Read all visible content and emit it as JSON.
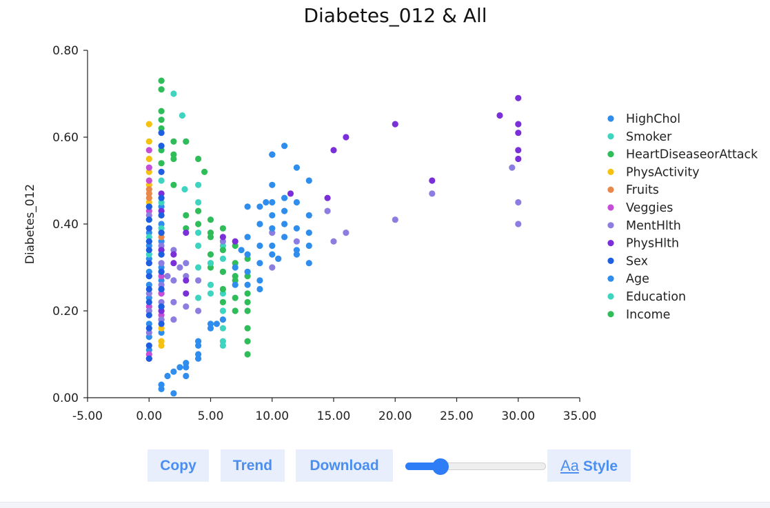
{
  "colors": {
    "HighChol": "#2e8ded",
    "Smoker": "#3dd4c0",
    "HeartDiseaseorAttack": "#2ebd59",
    "PhysActivity": "#f5c211",
    "Fruits": "#e8884a",
    "Veggies": "#c44fd6",
    "MentHlth": "#8c7ee0",
    "PhysHlth": "#7a2fd9",
    "Sex": "#1e5ee0",
    "Age": "#2e8ded",
    "Education": "#3dd4c0",
    "Income": "#2ebd59",
    "button_bg": "#e8eefb",
    "button_text": "#4a8ef0",
    "slider": "#2e7cf6"
  },
  "toolbar": {
    "copy_label": "Copy",
    "trend_label": "Trend",
    "download_label": "Download",
    "style_icon": "Aa",
    "style_label": "Style",
    "slider_value": 0.25
  },
  "chart_data": {
    "type": "scatter",
    "title": "Diabetes_012 & All",
    "xlabel": "",
    "ylabel": "Diabetes_012",
    "xlim": [
      -5,
      35
    ],
    "ylim": [
      0,
      0.8
    ],
    "x_ticks": [
      "-5.00",
      "0.00",
      "5.00",
      "10.00",
      "15.00",
      "20.00",
      "25.00",
      "30.00",
      "35.00"
    ],
    "y_ticks": [
      "0.00",
      "0.20",
      "0.40",
      "0.60",
      "0.80"
    ],
    "legend_position": "right",
    "grid": false,
    "series": [
      {
        "name": "HighChol",
        "points": [
          [
            0,
            0.11
          ],
          [
            0,
            0.14
          ],
          [
            0,
            0.17
          ],
          [
            0,
            0.2
          ],
          [
            0,
            0.23
          ],
          [
            0,
            0.26
          ],
          [
            0,
            0.29
          ],
          [
            0,
            0.32
          ],
          [
            0,
            0.35
          ],
          [
            0,
            0.38
          ],
          [
            1,
            0.15
          ],
          [
            1,
            0.18
          ],
          [
            1,
            0.21
          ],
          [
            1,
            0.24
          ],
          [
            1,
            0.27
          ],
          [
            1,
            0.3
          ],
          [
            1,
            0.33
          ],
          [
            1,
            0.36
          ],
          [
            1,
            0.4
          ],
          [
            1,
            0.44
          ]
        ]
      },
      {
        "name": "Smoker",
        "points": [
          [
            0,
            0.33
          ],
          [
            0,
            0.37
          ],
          [
            0,
            0.41
          ],
          [
            1,
            0.34
          ],
          [
            1,
            0.39
          ],
          [
            1,
            0.45
          ],
          [
            1,
            0.5
          ],
          [
            2,
            0.7
          ],
          [
            2.7,
            0.65
          ],
          [
            2.9,
            0.48
          ],
          [
            3,
            0.59
          ],
          [
            4,
            0.49
          ],
          [
            4,
            0.45
          ],
          [
            4,
            0.38
          ],
          [
            4,
            0.3
          ],
          [
            4,
            0.23
          ],
          [
            5,
            0.31
          ],
          [
            5,
            0.26
          ],
          [
            5,
            0.24
          ],
          [
            6,
            0.35
          ],
          [
            6,
            0.29
          ],
          [
            6,
            0.24
          ],
          [
            6,
            0.2
          ],
          [
            6,
            0.16
          ],
          [
            6,
            0.13
          ],
          [
            6,
            0.12
          ]
        ]
      },
      {
        "name": "HeartDiseaseorAttack",
        "points": [
          [
            1,
            0.73
          ],
          [
            1,
            0.71
          ],
          [
            1,
            0.66
          ],
          [
            1,
            0.64
          ],
          [
            1,
            0.62
          ],
          [
            1,
            0.57
          ],
          [
            1,
            0.54
          ],
          [
            2,
            0.59
          ],
          [
            2,
            0.56
          ],
          [
            2,
            0.55
          ],
          [
            2,
            0.49
          ],
          [
            3,
            0.59
          ],
          [
            4,
            0.55
          ],
          [
            4.5,
            0.52
          ],
          [
            3,
            0.42
          ],
          [
            3,
            0.39
          ],
          [
            4,
            0.43
          ],
          [
            4,
            0.4
          ],
          [
            5,
            0.41
          ],
          [
            5,
            0.38
          ],
          [
            5,
            0.33
          ],
          [
            5,
            0.3
          ],
          [
            6,
            0.39
          ],
          [
            6,
            0.34
          ],
          [
            6,
            0.29
          ],
          [
            6,
            0.25
          ],
          [
            6,
            0.22
          ],
          [
            7,
            0.35
          ],
          [
            7,
            0.31
          ],
          [
            7,
            0.27
          ],
          [
            7,
            0.23
          ],
          [
            7,
            0.2
          ],
          [
            8,
            0.32
          ],
          [
            8,
            0.28
          ],
          [
            8,
            0.24
          ],
          [
            8,
            0.2
          ],
          [
            8,
            0.16
          ],
          [
            8,
            0.13
          ],
          [
            8,
            0.1
          ]
        ]
      },
      {
        "name": "PhysActivity",
        "points": [
          [
            0,
            0.63
          ],
          [
            0,
            0.59
          ],
          [
            0,
            0.55
          ],
          [
            0,
            0.52
          ],
          [
            0,
            0.49
          ],
          [
            0,
            0.45
          ],
          [
            1,
            0.42
          ],
          [
            1,
            0.38
          ],
          [
            1,
            0.2
          ],
          [
            1,
            0.16
          ],
          [
            1,
            0.13
          ],
          [
            1,
            0.12
          ]
        ]
      },
      {
        "name": "Fruits",
        "points": [
          [
            0,
            0.48
          ],
          [
            0,
            0.47
          ],
          [
            0,
            0.46
          ],
          [
            1,
            0.37
          ]
        ]
      },
      {
        "name": "Veggies",
        "points": [
          [
            0,
            0.57
          ],
          [
            0,
            0.53
          ],
          [
            0,
            0.5
          ],
          [
            0,
            0.43
          ],
          [
            0,
            0.31
          ],
          [
            0,
            0.21
          ],
          [
            0,
            0.1
          ],
          [
            1,
            0.28
          ],
          [
            1,
            0.24
          ],
          [
            1,
            0.19
          ]
        ]
      },
      {
        "name": "MentHlth",
        "points": [
          [
            0,
            0.42
          ],
          [
            0,
            0.36
          ],
          [
            0,
            0.28
          ],
          [
            0,
            0.24
          ],
          [
            0,
            0.2
          ],
          [
            0,
            0.15
          ],
          [
            1,
            0.35
          ],
          [
            1,
            0.31
          ],
          [
            1,
            0.26
          ],
          [
            1,
            0.22
          ],
          [
            1,
            0.18
          ],
          [
            1.5,
            0.28
          ],
          [
            2,
            0.34
          ],
          [
            2,
            0.27
          ],
          [
            2,
            0.22
          ],
          [
            2,
            0.18
          ],
          [
            2.5,
            0.3
          ],
          [
            3,
            0.31
          ],
          [
            3,
            0.28
          ],
          [
            3,
            0.21
          ],
          [
            4,
            0.27
          ],
          [
            4,
            0.2
          ],
          [
            6,
            0.36
          ],
          [
            10,
            0.38
          ],
          [
            10,
            0.3
          ],
          [
            10.5,
            0.32
          ],
          [
            12,
            0.36
          ],
          [
            14.5,
            0.43
          ],
          [
            15,
            0.36
          ],
          [
            16,
            0.38
          ],
          [
            20,
            0.41
          ],
          [
            23,
            0.47
          ],
          [
            29.5,
            0.53
          ],
          [
            30,
            0.45
          ],
          [
            30,
            0.4
          ]
        ]
      },
      {
        "name": "PhysHlth",
        "points": [
          [
            0,
            0.44
          ],
          [
            0,
            0.39
          ],
          [
            0,
            0.09
          ],
          [
            1,
            0.47
          ],
          [
            1,
            0.43
          ],
          [
            1,
            0.34
          ],
          [
            1,
            0.29
          ],
          [
            1,
            0.25
          ],
          [
            1,
            0.2
          ],
          [
            2,
            0.33
          ],
          [
            2,
            0.31
          ],
          [
            3,
            0.38
          ],
          [
            3,
            0.27
          ],
          [
            3,
            0.24
          ],
          [
            6,
            0.37
          ],
          [
            7,
            0.36
          ],
          [
            10,
            0.56
          ],
          [
            11.5,
            0.47
          ],
          [
            14.5,
            0.46
          ],
          [
            15,
            0.57
          ],
          [
            16,
            0.6
          ],
          [
            20,
            0.63
          ],
          [
            23,
            0.5
          ],
          [
            28.5,
            0.65
          ],
          [
            30,
            0.69
          ],
          [
            30,
            0.63
          ],
          [
            30,
            0.61
          ],
          [
            30,
            0.57
          ],
          [
            30,
            0.55
          ]
        ]
      },
      {
        "name": "Sex",
        "points": [
          [
            0,
            0.09
          ],
          [
            0,
            0.12
          ],
          [
            0,
            0.16
          ],
          [
            0,
            0.19
          ],
          [
            0,
            0.22
          ],
          [
            0,
            0.25
          ],
          [
            0,
            0.28
          ],
          [
            0,
            0.31
          ],
          [
            0,
            0.34
          ],
          [
            0,
            0.36
          ],
          [
            0,
            0.39
          ],
          [
            0,
            0.41
          ],
          [
            0,
            0.44
          ],
          [
            1,
            0.17
          ],
          [
            1,
            0.21
          ],
          [
            1,
            0.25
          ],
          [
            1,
            0.29
          ],
          [
            1,
            0.33
          ],
          [
            1,
            0.38
          ],
          [
            1,
            0.42
          ],
          [
            1,
            0.46
          ],
          [
            1,
            0.52
          ],
          [
            1,
            0.58
          ],
          [
            1,
            0.61
          ]
        ]
      },
      {
        "name": "Age",
        "points": [
          [
            1,
            0.02
          ],
          [
            1,
            0.03
          ],
          [
            1.5,
            0.05
          ],
          [
            2,
            0.01
          ],
          [
            2,
            0.06
          ],
          [
            2.5,
            0.07
          ],
          [
            3,
            0.05
          ],
          [
            3,
            0.07
          ],
          [
            3,
            0.08
          ],
          [
            4,
            0.09
          ],
          [
            4,
            0.1
          ],
          [
            4,
            0.12
          ],
          [
            4,
            0.13
          ],
          [
            5,
            0.17
          ],
          [
            5,
            0.16
          ],
          [
            5.5,
            0.17
          ],
          [
            6,
            0.18
          ],
          [
            7,
            0.26
          ],
          [
            7,
            0.3
          ],
          [
            7.5,
            0.34
          ],
          [
            8,
            0.37
          ],
          [
            8,
            0.33
          ],
          [
            8,
            0.29
          ],
          [
            8,
            0.26
          ],
          [
            8,
            0.44
          ],
          [
            9,
            0.44
          ],
          [
            9,
            0.4
          ],
          [
            9,
            0.35
          ],
          [
            9,
            0.31
          ],
          [
            9,
            0.27
          ],
          [
            9,
            0.25
          ],
          [
            9.5,
            0.45
          ],
          [
            10,
            0.56
          ],
          [
            10,
            0.49
          ],
          [
            10,
            0.45
          ],
          [
            10,
            0.42
          ],
          [
            10,
            0.39
          ],
          [
            10,
            0.35
          ],
          [
            10,
            0.33
          ],
          [
            10.5,
            0.32
          ],
          [
            11,
            0.58
          ],
          [
            11,
            0.46
          ],
          [
            11,
            0.43
          ],
          [
            11,
            0.4
          ],
          [
            11,
            0.37
          ],
          [
            12,
            0.53
          ],
          [
            12,
            0.45
          ],
          [
            12,
            0.39
          ],
          [
            12,
            0.34
          ],
          [
            12,
            0.33
          ],
          [
            13,
            0.5
          ],
          [
            13,
            0.42
          ],
          [
            13,
            0.38
          ],
          [
            13,
            0.35
          ],
          [
            13,
            0.31
          ]
        ]
      },
      {
        "name": "Education",
        "points": [
          [
            5,
            0.31
          ],
          [
            6,
            0.32
          ],
          [
            4,
            0.35
          ]
        ]
      },
      {
        "name": "Income",
        "points": [
          [
            5,
            0.37
          ],
          [
            7,
            0.28
          ],
          [
            8,
            0.22
          ]
        ]
      }
    ]
  }
}
